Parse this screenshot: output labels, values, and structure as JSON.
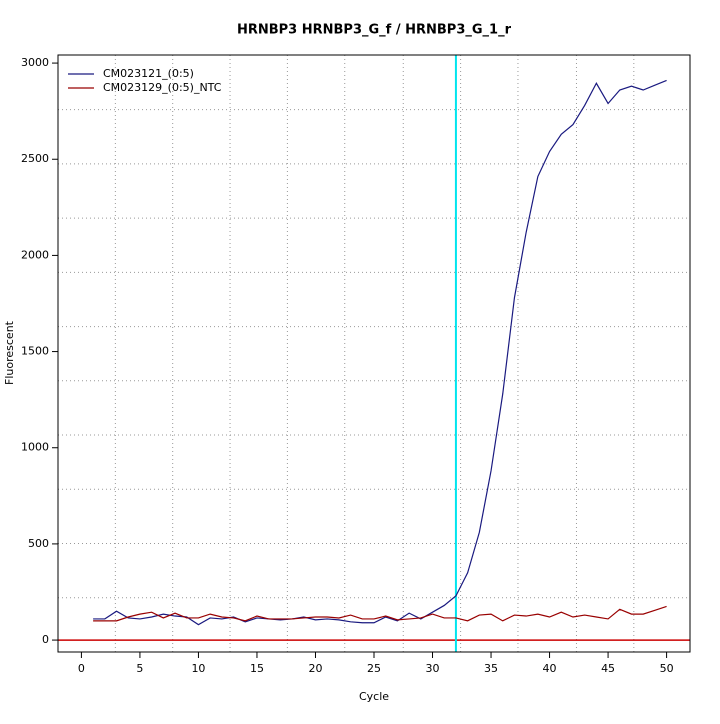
{
  "chart_data": {
    "type": "line",
    "title": "HRNBP3  HRNBP3_G_f / HRNBP3_G_1_r",
    "x_label": "Cycle",
    "y_label": "Fluorescent",
    "x": [
      1,
      2,
      3,
      4,
      5,
      6,
      7,
      8,
      9,
      10,
      11,
      12,
      13,
      14,
      15,
      16,
      17,
      18,
      19,
      20,
      21,
      22,
      23,
      24,
      25,
      26,
      27,
      28,
      29,
      30,
      31,
      32,
      33,
      34,
      35,
      36,
      37,
      38,
      39,
      40,
      41,
      42,
      43,
      44,
      45,
      46,
      47,
      48,
      49,
      50
    ],
    "series": [
      {
        "name": "CM023121_(0:5)",
        "color": "#1a1a80",
        "values": [
          110,
          110,
          150,
          115,
          110,
          120,
          135,
          125,
          120,
          80,
          115,
          110,
          120,
          95,
          115,
          110,
          105,
          110,
          120,
          105,
          110,
          105,
          95,
          90,
          90,
          120,
          100,
          140,
          110,
          145,
          180,
          230,
          350,
          560,
          880,
          1280,
          1780,
          2120,
          2410,
          2540,
          2630,
          2680,
          2780,
          2895,
          2790,
          2860,
          2880,
          2860,
          2885,
          2910
        ]
      },
      {
        "name": "CM023129_(0:5)_NTC",
        "color": "#990000",
        "values": [
          100,
          100,
          100,
          120,
          135,
          145,
          115,
          140,
          115,
          115,
          135,
          120,
          115,
          100,
          125,
          110,
          110,
          110,
          115,
          120,
          120,
          115,
          130,
          110,
          110,
          125,
          105,
          110,
          115,
          135,
          115,
          115,
          100,
          130,
          135,
          100,
          130,
          125,
          135,
          120,
          145,
          120,
          130,
          120,
          110,
          160,
          135,
          135,
          155,
          175
        ]
      }
    ],
    "xlim": [
      -2,
      52
    ],
    "ylim": [
      -62,
      3042
    ],
    "xticks": [
      0,
      5,
      10,
      15,
      20,
      25,
      30,
      35,
      40,
      45,
      50
    ],
    "yticks": [
      0,
      500,
      1000,
      1500,
      2000,
      2500,
      3000
    ],
    "grid_x": [
      2.9,
      7.8,
      12.7,
      17.6,
      22.5,
      27.5,
      32.4,
      37.3,
      42.3,
      47.2
    ],
    "grid_y": [
      220,
      502,
      784,
      1066,
      1348,
      1630,
      1912,
      2194,
      2476,
      2758
    ],
    "threshold_x": 32,
    "threshold_color": "#00e5ee",
    "baseline_y": 0,
    "baseline_color": "#cc0000",
    "legend": "top-left"
  }
}
